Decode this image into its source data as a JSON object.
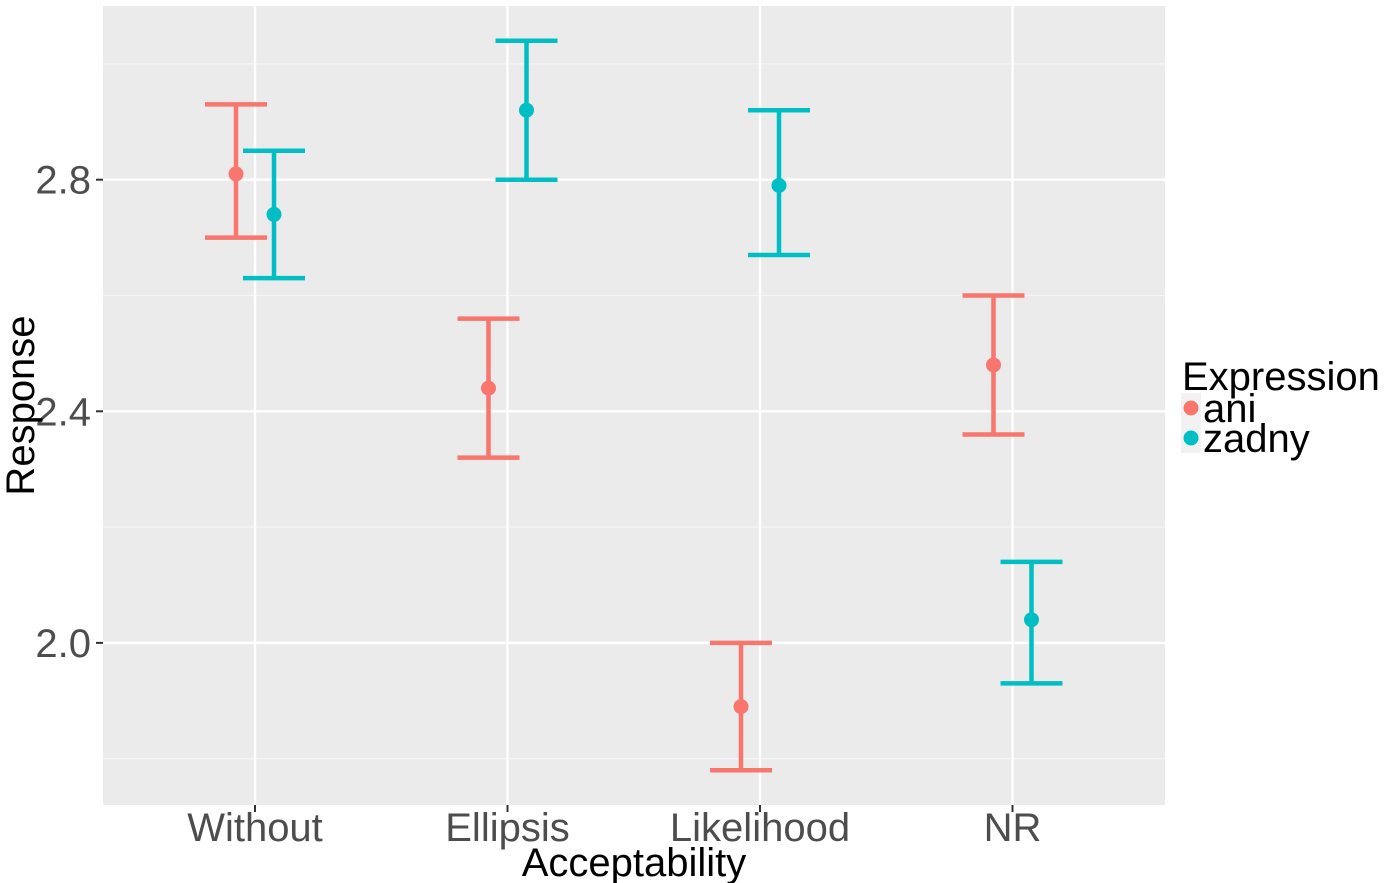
{
  "chart_data": {
    "type": "scatter",
    "subtype": "point-errorbar",
    "categories": [
      "Without",
      "Ellipsis",
      "Likelihood",
      "NR"
    ],
    "xlabel": "Acceptability",
    "ylabel": "Response",
    "ylim": [
      1.72,
      3.1
    ],
    "y_ticks": [
      "2.0",
      "2.4",
      "2.8"
    ],
    "grid": true,
    "legend": {
      "title": "Expression",
      "position": "right"
    },
    "series": [
      {
        "name": "ani",
        "color": "#F8766D",
        "points": [
          {
            "x": "Without",
            "y": 2.81,
            "ymin": 2.7,
            "ymax": 2.93
          },
          {
            "x": "Ellipsis",
            "y": 2.44,
            "ymin": 2.32,
            "ymax": 2.56
          },
          {
            "x": "Likelihood",
            "y": 1.89,
            "ymin": 1.78,
            "ymax": 2.0
          },
          {
            "x": "NR",
            "y": 2.48,
            "ymin": 2.36,
            "ymax": 2.6
          }
        ]
      },
      {
        "name": "zadny",
        "color": "#00BFC4",
        "points": [
          {
            "x": "Without",
            "y": 2.74,
            "ymin": 2.63,
            "ymax": 2.85
          },
          {
            "x": "Ellipsis",
            "y": 2.92,
            "ymin": 2.8,
            "ymax": 3.04
          },
          {
            "x": "Likelihood",
            "y": 2.79,
            "ymin": 2.67,
            "ymax": 2.92
          },
          {
            "x": "NR",
            "y": 2.04,
            "ymin": 1.93,
            "ymax": 2.14
          }
        ]
      }
    ],
    "colors": {
      "panel_background": "#EBEBEB",
      "grid_major": "#FFFFFF",
      "grid_minor": "#F5F5F5"
    }
  }
}
